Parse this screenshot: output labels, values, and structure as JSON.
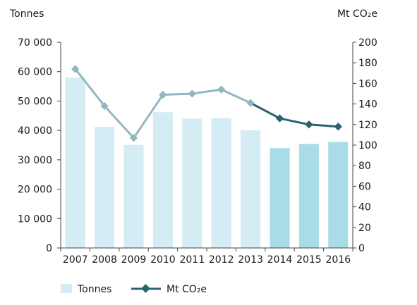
{
  "chart_data": {
    "type": "bar+line",
    "categories": [
      "2007",
      "2008",
      "2009",
      "2010",
      "2011",
      "2012",
      "2013",
      "2014",
      "2015",
      "2016"
    ],
    "series": [
      {
        "name": "Tonnes",
        "type": "bar",
        "axis": "left",
        "values": [
          58000,
          41200,
          35100,
          46200,
          44000,
          44100,
          40000,
          34000,
          35400,
          36100
        ],
        "colors": [
          "#d4ecf3",
          "#d4ecf3",
          "#d4ecf3",
          "#d4ecf3",
          "#d4ecf3",
          "#d4ecf3",
          "#d4ecf3",
          "#aadce8",
          "#aadce8",
          "#aadce8"
        ]
      },
      {
        "name": "Mt CO₂e",
        "type": "line",
        "axis": "right",
        "values": [
          174,
          138,
          107,
          149,
          150,
          154,
          141,
          126,
          120,
          118
        ],
        "colors": [
          "#93b6c3",
          "#93b6c3",
          "#93b6c3",
          "#93b6c3",
          "#93b6c3",
          "#93b6c3",
          "#93b6c3",
          "#2c6270",
          "#2c6270",
          "#2c6270"
        ]
      }
    ],
    "left_axis": {
      "label": "Tonnes",
      "ylim": [
        0,
        70000
      ],
      "ticks": [
        0,
        10000,
        20000,
        30000,
        40000,
        50000,
        60000,
        70000
      ],
      "tick_labels": [
        "0",
        "10 000",
        "20 000",
        "30 000",
        "40 000",
        "50 000",
        "60 000",
        "70 000"
      ]
    },
    "right_axis": {
      "label": "Mt CO₂e",
      "ylim": [
        0,
        200
      ],
      "ticks": [
        0,
        20,
        40,
        60,
        80,
        100,
        120,
        140,
        160,
        180,
        200
      ],
      "tick_labels": [
        "0",
        "20",
        "40",
        "60",
        "80",
        "100",
        "120",
        "140",
        "160",
        "180",
        "200"
      ]
    },
    "legend": {
      "position": "bottom-left",
      "items": [
        {
          "label": "Tonnes",
          "kind": "bar",
          "color": "#d4ecf3"
        },
        {
          "label": "Mt CO₂e",
          "kind": "line",
          "color": "#2c6270"
        }
      ]
    },
    "grid": false
  }
}
